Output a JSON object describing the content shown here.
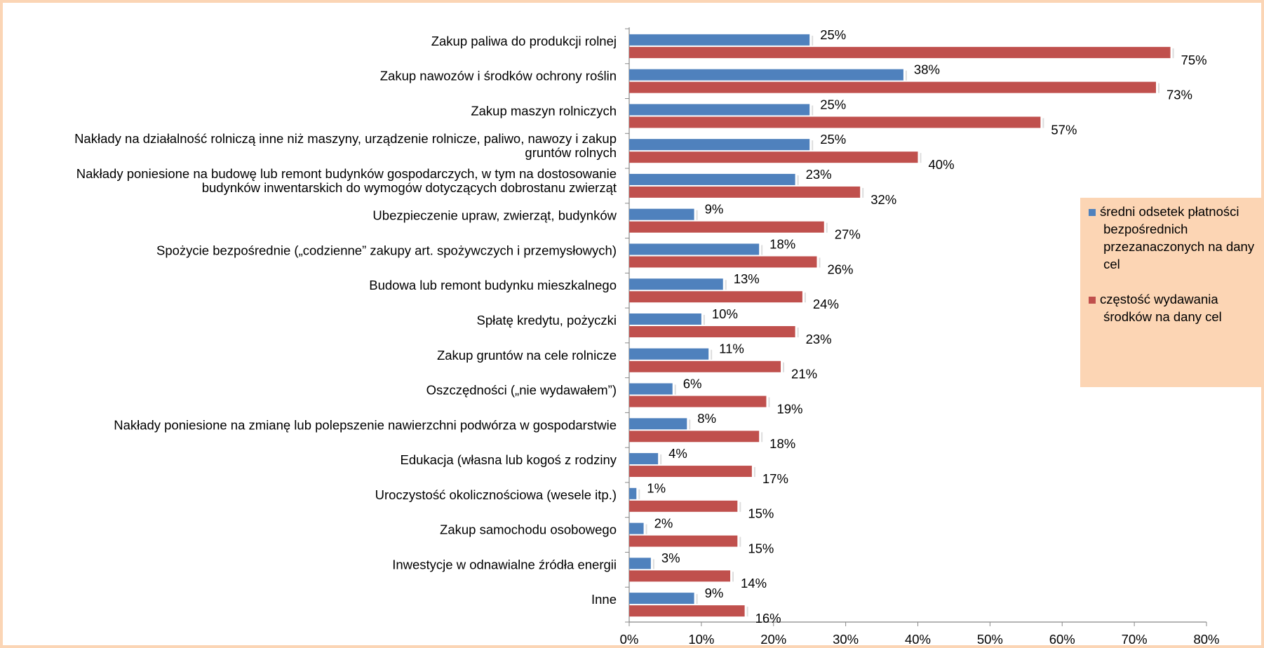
{
  "chart_data": {
    "type": "bar",
    "orientation": "horizontal",
    "categories": [
      "Zakup paliwa do produkcji rolnej",
      "Zakup nawozów i środków ochrony roślin",
      "Zakup maszyn rolniczych",
      "Nakłady na działalność rolniczą inne niż maszyny, urządzenie rolnicze, paliwo, nawozy i zakup gruntów rolnych",
      "Nakłady poniesione na budowę lub remont budynków gospodarczych, w tym na dostosowanie budynków inwentarskich do wymogów dotyczących dobrostanu zwierząt",
      "Ubezpieczenie upraw, zwierząt, budynków",
      "Spożycie bezpośrednie („codzienne” zakupy art. spożywczych i przemysłowych)",
      "Budowa lub remont budynku mieszkalnego",
      "Spłatę kredytu, pożyczki",
      "Zakup gruntów na cele rolnicze",
      "Oszczędności („nie wydawałem”)",
      "Nakłady poniesione na zmianę lub polepszenie nawierzchni podwórza w gospodarstwie",
      "Edukacja (własna lub kogoś z rodziny",
      "Uroczystość okolicznościowa (wesele itp.)",
      "Zakup samochodu osobowego",
      "Inwestycje w odnawialne źródła energii",
      "Inne"
    ],
    "series": [
      {
        "name": "średni odsetek płatności bezpośrednich przezanaczonych na dany cel",
        "color": "#4f81bd",
        "values": [
          25,
          38,
          25,
          25,
          23,
          9,
          18,
          13,
          10,
          11,
          6,
          8,
          4,
          1,
          2,
          3,
          9
        ],
        "value_labels": [
          "25%",
          "38%",
          "25%",
          "25%",
          "23%",
          "9%",
          "18%",
          "13%",
          "10%",
          "11%",
          "6%",
          "8%",
          "4%",
          "1%",
          "2%",
          "3%",
          "9%"
        ]
      },
      {
        "name": "częstość wydawania środków na dany cel",
        "color": "#c0504d",
        "values": [
          75,
          73,
          57,
          40,
          32,
          27,
          26,
          24,
          23,
          21,
          19,
          18,
          17,
          15,
          15,
          14,
          16
        ],
        "value_labels": [
          "75%",
          "73%",
          "57%",
          "40%",
          "32%",
          "27%",
          "26%",
          "24%",
          "23%",
          "21%",
          "19%",
          "18%",
          "17%",
          "15%",
          "15%",
          "14%",
          "16%"
        ]
      }
    ],
    "xlim": [
      0,
      80
    ],
    "xticks": [
      {
        "value": 0,
        "label": "0%"
      },
      {
        "value": 10,
        "label": "10%"
      },
      {
        "value": 20,
        "label": "20%"
      },
      {
        "value": 30,
        "label": "30%"
      },
      {
        "value": 40,
        "label": "40%"
      },
      {
        "value": 50,
        "label": "50%"
      },
      {
        "value": 60,
        "label": "60%"
      },
      {
        "value": 70,
        "label": "70%"
      },
      {
        "value": 80,
        "label": "80%"
      }
    ],
    "legend": "right"
  }
}
